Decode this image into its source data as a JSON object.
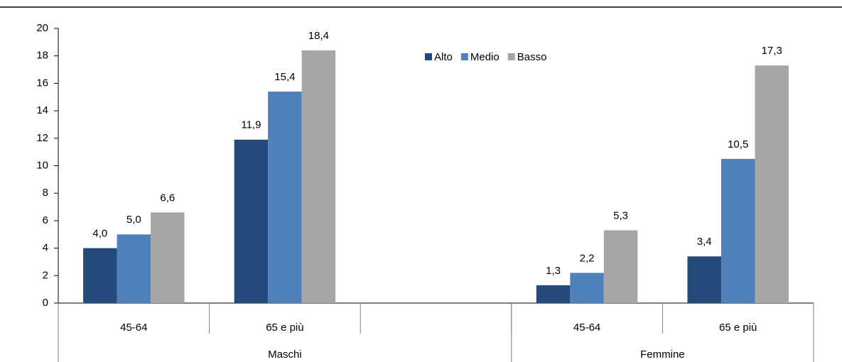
{
  "chart_data": {
    "type": "bar",
    "categories": [
      "45-64",
      "65 e più",
      null,
      "45-64",
      "65 e più"
    ],
    "groups": [
      {
        "name": "Maschi",
        "count": 3
      },
      {
        "name": "Femmine",
        "count": 2
      }
    ],
    "series": [
      {
        "name": "Alto",
        "color": "#244a7c",
        "values": [
          4.0,
          11.9,
          null,
          1.3,
          3.4
        ],
        "value_labels": [
          "4,0",
          "11,9",
          null,
          "1,3",
          "3,4"
        ]
      },
      {
        "name": "Medio",
        "color": "#4f81bd",
        "values": [
          5.0,
          15.4,
          null,
          2.2,
          10.5
        ],
        "value_labels": [
          "5,0",
          "15,4",
          null,
          "2,2",
          "10,5"
        ]
      },
      {
        "name": "Basso",
        "color": "#a6a6a6",
        "values": [
          6.6,
          18.4,
          null,
          5.3,
          17.3
        ],
        "value_labels": [
          "6,6",
          "18,4",
          null,
          "5,3",
          "17,3"
        ]
      }
    ],
    "ylim": [
      0,
      20
    ],
    "yticks": [
      0,
      2,
      4,
      6,
      8,
      10,
      12,
      14,
      16,
      18,
      20
    ],
    "legend": "top"
  }
}
